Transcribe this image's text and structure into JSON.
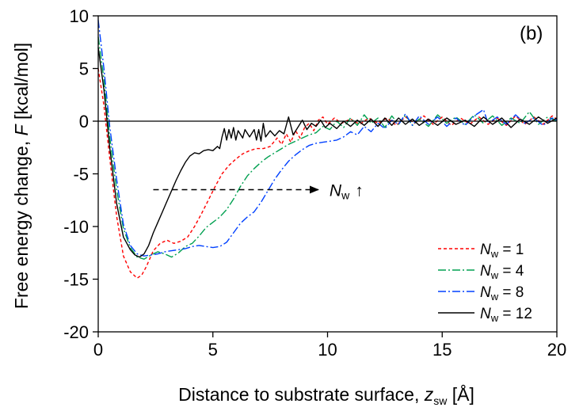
{
  "chart_data": {
    "type": "line",
    "panel_label": "(b)",
    "xlabel": {
      "prefix": "Distance to substrate surface, ",
      "var": "z",
      "sub": "sw",
      "suffix": " [Å]"
    },
    "ylabel": {
      "prefix": "Free energy change, ",
      "var": "F",
      "suffix": " [kcal/mol]"
    },
    "xlim": [
      0,
      20
    ],
    "ylim": [
      -20,
      10
    ],
    "xticks": [
      0,
      5,
      10,
      15,
      20
    ],
    "yticks": [
      -20,
      -15,
      -10,
      -5,
      0,
      5,
      10
    ],
    "xtick_labels": [
      "0",
      "5",
      "10",
      "15",
      "20"
    ],
    "ytick_labels": [
      "-20",
      "-15",
      "-10",
      "-5",
      "0",
      "5",
      "10"
    ],
    "zero_line": 0,
    "annotation": {
      "text_var": "N",
      "text_sub": "w",
      "arrow": "↑",
      "x_start": 2.4,
      "x_end": 9.6,
      "y": -6.5
    },
    "series": [
      {
        "name": "N_w = 1",
        "legend_var": "N",
        "legend_sub": "w",
        "legend_value": " = 1",
        "color": "#ff0000",
        "dash": "4,3",
        "points": [
          [
            0,
            5.0
          ],
          [
            0.25,
            1.5
          ],
          [
            0.5,
            -3.5
          ],
          [
            0.8,
            -9.0
          ],
          [
            1.1,
            -12.8
          ],
          [
            1.4,
            -14.3
          ],
          [
            1.7,
            -14.9
          ],
          [
            1.9,
            -14.6
          ],
          [
            2.1,
            -13.8
          ],
          [
            2.4,
            -12.3
          ],
          [
            2.7,
            -11.6
          ],
          [
            3.0,
            -11.3
          ],
          [
            3.3,
            -11.6
          ],
          [
            3.6,
            -11.4
          ],
          [
            3.9,
            -11.0
          ],
          [
            4.2,
            -10.0
          ],
          [
            4.5,
            -8.8
          ],
          [
            4.8,
            -7.5
          ],
          [
            5.1,
            -6.2
          ],
          [
            5.4,
            -5.0
          ],
          [
            5.7,
            -4.2
          ],
          [
            6.0,
            -3.6
          ],
          [
            6.3,
            -3.1
          ],
          [
            6.6,
            -2.8
          ],
          [
            6.9,
            -2.6
          ],
          [
            7.2,
            -2.6
          ],
          [
            7.5,
            -2.4
          ],
          [
            7.8,
            -1.6
          ],
          [
            8.0,
            -2.2
          ],
          [
            8.2,
            -1.2
          ],
          [
            8.4,
            -2.0
          ],
          [
            8.6,
            -0.9
          ],
          [
            8.8,
            -1.6
          ],
          [
            9.0,
            -0.6
          ],
          [
            9.2,
            -0.2
          ],
          [
            9.4,
            -0.9
          ],
          [
            9.6,
            0.1
          ],
          [
            9.8,
            0.4
          ],
          [
            10.0,
            -0.3
          ],
          [
            10.3,
            0.3
          ],
          [
            10.6,
            -0.2
          ],
          [
            11.0,
            0.2
          ],
          [
            11.4,
            -0.3
          ],
          [
            11.8,
            0.3
          ],
          [
            12.2,
            -0.2
          ],
          [
            12.6,
            0.3
          ],
          [
            13.0,
            -0.4
          ],
          [
            13.4,
            0.4
          ],
          [
            13.8,
            -0.2
          ],
          [
            14.2,
            0.5
          ],
          [
            14.6,
            -0.3
          ],
          [
            15.0,
            0.4
          ],
          [
            15.4,
            -0.4
          ],
          [
            15.8,
            0.3
          ],
          [
            16.2,
            -0.3
          ],
          [
            16.6,
            0.4
          ],
          [
            17.0,
            -0.3
          ],
          [
            17.4,
            0.3
          ],
          [
            17.8,
            -0.4
          ],
          [
            18.2,
            0.5
          ],
          [
            18.6,
            -0.3
          ],
          [
            19.0,
            0.4
          ],
          [
            19.4,
            -0.3
          ],
          [
            19.8,
            0.5
          ],
          [
            20.0,
            0.2
          ]
        ]
      },
      {
        "name": "N_w = 4",
        "legend_var": "N",
        "legend_sub": "w",
        "legend_value": " = 4",
        "color": "#00a050",
        "dash": "10,3,2,3",
        "points": [
          [
            0,
            8.0
          ],
          [
            0.25,
            4.0
          ],
          [
            0.5,
            -1.5
          ],
          [
            0.8,
            -6.5
          ],
          [
            1.1,
            -10.2
          ],
          [
            1.4,
            -12.0
          ],
          [
            1.7,
            -12.9
          ],
          [
            2.0,
            -13.1
          ],
          [
            2.3,
            -12.7
          ],
          [
            2.6,
            -12.4
          ],
          [
            2.9,
            -12.6
          ],
          [
            3.2,
            -12.9
          ],
          [
            3.5,
            -12.5
          ],
          [
            3.8,
            -11.9
          ],
          [
            4.1,
            -11.6
          ],
          [
            4.4,
            -10.9
          ],
          [
            4.7,
            -10.1
          ],
          [
            5.0,
            -9.6
          ],
          [
            5.3,
            -9.1
          ],
          [
            5.6,
            -8.4
          ],
          [
            5.9,
            -7.4
          ],
          [
            6.2,
            -6.2
          ],
          [
            6.5,
            -5.2
          ],
          [
            6.8,
            -4.5
          ],
          [
            7.1,
            -3.9
          ],
          [
            7.4,
            -3.4
          ],
          [
            7.7,
            -3.0
          ],
          [
            8.0,
            -2.6
          ],
          [
            8.3,
            -2.2
          ],
          [
            8.6,
            -1.9
          ],
          [
            8.9,
            -1.6
          ],
          [
            9.2,
            -1.3
          ],
          [
            9.5,
            -1.1
          ],
          [
            9.8,
            -0.5
          ],
          [
            10.1,
            -0.8
          ],
          [
            10.4,
            0.0
          ],
          [
            10.7,
            -0.6
          ],
          [
            11.0,
            0.3
          ],
          [
            11.3,
            -0.4
          ],
          [
            11.6,
            0.6
          ],
          [
            11.9,
            -0.2
          ],
          [
            12.2,
            0.3
          ],
          [
            12.5,
            -0.6
          ],
          [
            12.8,
            0.5
          ],
          [
            13.1,
            -0.3
          ],
          [
            13.4,
            0.6
          ],
          [
            13.7,
            -0.4
          ],
          [
            14.0,
            0.2
          ],
          [
            14.4,
            -0.5
          ],
          [
            14.8,
            0.6
          ],
          [
            15.2,
            -0.2
          ],
          [
            15.6,
            0.4
          ],
          [
            16.0,
            -0.3
          ],
          [
            16.4,
            0.6
          ],
          [
            16.8,
            -0.2
          ],
          [
            17.2,
            0.5
          ],
          [
            17.6,
            -0.4
          ],
          [
            18.0,
            0.3
          ],
          [
            18.4,
            -0.2
          ],
          [
            18.8,
            0.9
          ],
          [
            19.2,
            -0.3
          ],
          [
            19.6,
            0.4
          ],
          [
            20.0,
            0.0
          ]
        ]
      },
      {
        "name": "N_w = 8",
        "legend_var": "N",
        "legend_sub": "w",
        "legend_value": " = 8",
        "color": "#0040ff",
        "dash": "10,3,2,3",
        "points": [
          [
            0,
            9.6
          ],
          [
            0.25,
            5.0
          ],
          [
            0.5,
            -0.5
          ],
          [
            0.8,
            -5.5
          ],
          [
            1.1,
            -9.8
          ],
          [
            1.4,
            -11.8
          ],
          [
            1.7,
            -12.6
          ],
          [
            2.0,
            -12.8
          ],
          [
            2.3,
            -12.7
          ],
          [
            2.6,
            -12.6
          ],
          [
            2.9,
            -12.4
          ],
          [
            3.2,
            -12.3
          ],
          [
            3.5,
            -12.2
          ],
          [
            3.8,
            -12.1
          ],
          [
            4.1,
            -11.9
          ],
          [
            4.4,
            -11.8
          ],
          [
            4.7,
            -11.9
          ],
          [
            5.0,
            -12.0
          ],
          [
            5.3,
            -11.9
          ],
          [
            5.6,
            -11.5
          ],
          [
            5.9,
            -10.6
          ],
          [
            6.2,
            -9.7
          ],
          [
            6.5,
            -9.1
          ],
          [
            6.8,
            -8.6
          ],
          [
            7.1,
            -7.7
          ],
          [
            7.4,
            -6.6
          ],
          [
            7.7,
            -5.5
          ],
          [
            8.0,
            -4.6
          ],
          [
            8.3,
            -3.8
          ],
          [
            8.6,
            -3.2
          ],
          [
            8.9,
            -2.7
          ],
          [
            9.2,
            -2.3
          ],
          [
            9.5,
            -2.1
          ],
          [
            9.8,
            -2.0
          ],
          [
            10.1,
            -1.9
          ],
          [
            10.4,
            -1.8
          ],
          [
            10.7,
            -1.5
          ],
          [
            11.0,
            -1.0
          ],
          [
            11.3,
            -1.3
          ],
          [
            11.6,
            -0.5
          ],
          [
            11.9,
            -1.0
          ],
          [
            12.2,
            -0.2
          ],
          [
            12.5,
            -0.7
          ],
          [
            12.8,
            0.1
          ],
          [
            13.1,
            -0.3
          ],
          [
            13.4,
            0.7
          ],
          [
            13.7,
            -0.4
          ],
          [
            14.0,
            0.5
          ],
          [
            14.4,
            -0.3
          ],
          [
            14.8,
            0.4
          ],
          [
            15.2,
            -0.5
          ],
          [
            15.6,
            0.3
          ],
          [
            16.0,
            -0.4
          ],
          [
            16.4,
            0.5
          ],
          [
            16.8,
            1.1
          ],
          [
            17.0,
            -0.2
          ],
          [
            17.4,
            0.4
          ],
          [
            17.8,
            -0.3
          ],
          [
            18.2,
            0.6
          ],
          [
            18.6,
            -0.2
          ],
          [
            19.0,
            0.3
          ],
          [
            19.4,
            -0.4
          ],
          [
            19.8,
            0.3
          ],
          [
            20.0,
            0.1
          ]
        ]
      },
      {
        "name": "N_w = 12",
        "legend_var": "N",
        "legend_sub": "w",
        "legend_value": " = 12",
        "color": "#000000",
        "dash": "",
        "points": [
          [
            0,
            7.0
          ],
          [
            0.25,
            3.0
          ],
          [
            0.5,
            -2.5
          ],
          [
            0.8,
            -7.8
          ],
          [
            1.1,
            -11.0
          ],
          [
            1.4,
            -12.2
          ],
          [
            1.6,
            -12.7
          ],
          [
            1.8,
            -12.9
          ],
          [
            2.0,
            -12.6
          ],
          [
            2.2,
            -11.8
          ],
          [
            2.4,
            -10.6
          ],
          [
            2.6,
            -9.6
          ],
          [
            2.8,
            -8.6
          ],
          [
            3.0,
            -7.6
          ],
          [
            3.2,
            -6.6
          ],
          [
            3.4,
            -5.6
          ],
          [
            3.6,
            -4.7
          ],
          [
            3.8,
            -3.9
          ],
          [
            4.0,
            -3.3
          ],
          [
            4.2,
            -3.0
          ],
          [
            4.4,
            -3.1
          ],
          [
            4.6,
            -2.8
          ],
          [
            4.8,
            -2.7
          ],
          [
            5.0,
            -2.8
          ],
          [
            5.2,
            -2.4
          ],
          [
            5.3,
            -2.6
          ],
          [
            5.4,
            -1.5
          ],
          [
            5.5,
            -0.7
          ],
          [
            5.6,
            -1.8
          ],
          [
            5.7,
            -0.8
          ],
          [
            5.8,
            -1.6
          ],
          [
            5.9,
            -0.6
          ],
          [
            6.0,
            -1.8
          ],
          [
            6.1,
            -0.9
          ],
          [
            6.3,
            -1.6
          ],
          [
            6.4,
            -0.8
          ],
          [
            6.6,
            -1.5
          ],
          [
            6.8,
            -0.8
          ],
          [
            6.9,
            -1.8
          ],
          [
            7.0,
            -0.8
          ],
          [
            7.1,
            -1.9
          ],
          [
            7.2,
            -0.2
          ],
          [
            7.3,
            -1.5
          ],
          [
            7.5,
            -0.9
          ],
          [
            7.7,
            -1.4
          ],
          [
            7.9,
            -0.9
          ],
          [
            8.1,
            -1.2
          ],
          [
            8.3,
            0.4
          ],
          [
            8.5,
            -1.3
          ],
          [
            8.7,
            -0.6
          ],
          [
            8.9,
            0.1
          ],
          [
            9.1,
            -0.8
          ],
          [
            9.3,
            -0.2
          ],
          [
            9.5,
            -0.5
          ],
          [
            9.7,
            0.1
          ],
          [
            9.9,
            -0.6
          ],
          [
            10.1,
            -0.2
          ],
          [
            10.4,
            -0.7
          ],
          [
            10.7,
            0.0
          ],
          [
            11.0,
            -0.5
          ],
          [
            11.3,
            0.1
          ],
          [
            11.6,
            -0.4
          ],
          [
            11.9,
            0.2
          ],
          [
            12.2,
            -0.5
          ],
          [
            12.5,
            0.3
          ],
          [
            12.8,
            -0.4
          ],
          [
            13.1,
            0.3
          ],
          [
            13.4,
            -0.3
          ],
          [
            13.7,
            0.2
          ],
          [
            14.0,
            -0.4
          ],
          [
            14.4,
            0.2
          ],
          [
            14.8,
            -0.4
          ],
          [
            15.2,
            0.3
          ],
          [
            15.6,
            -0.3
          ],
          [
            16.0,
            0.1
          ],
          [
            16.4,
            -0.5
          ],
          [
            16.8,
            0.4
          ],
          [
            17.2,
            -0.3
          ],
          [
            17.6,
            0.3
          ],
          [
            18.0,
            -0.6
          ],
          [
            18.4,
            0.2
          ],
          [
            18.8,
            -0.3
          ],
          [
            19.2,
            0.4
          ],
          [
            19.6,
            -0.2
          ],
          [
            20.0,
            0.3
          ]
        ]
      }
    ]
  }
}
